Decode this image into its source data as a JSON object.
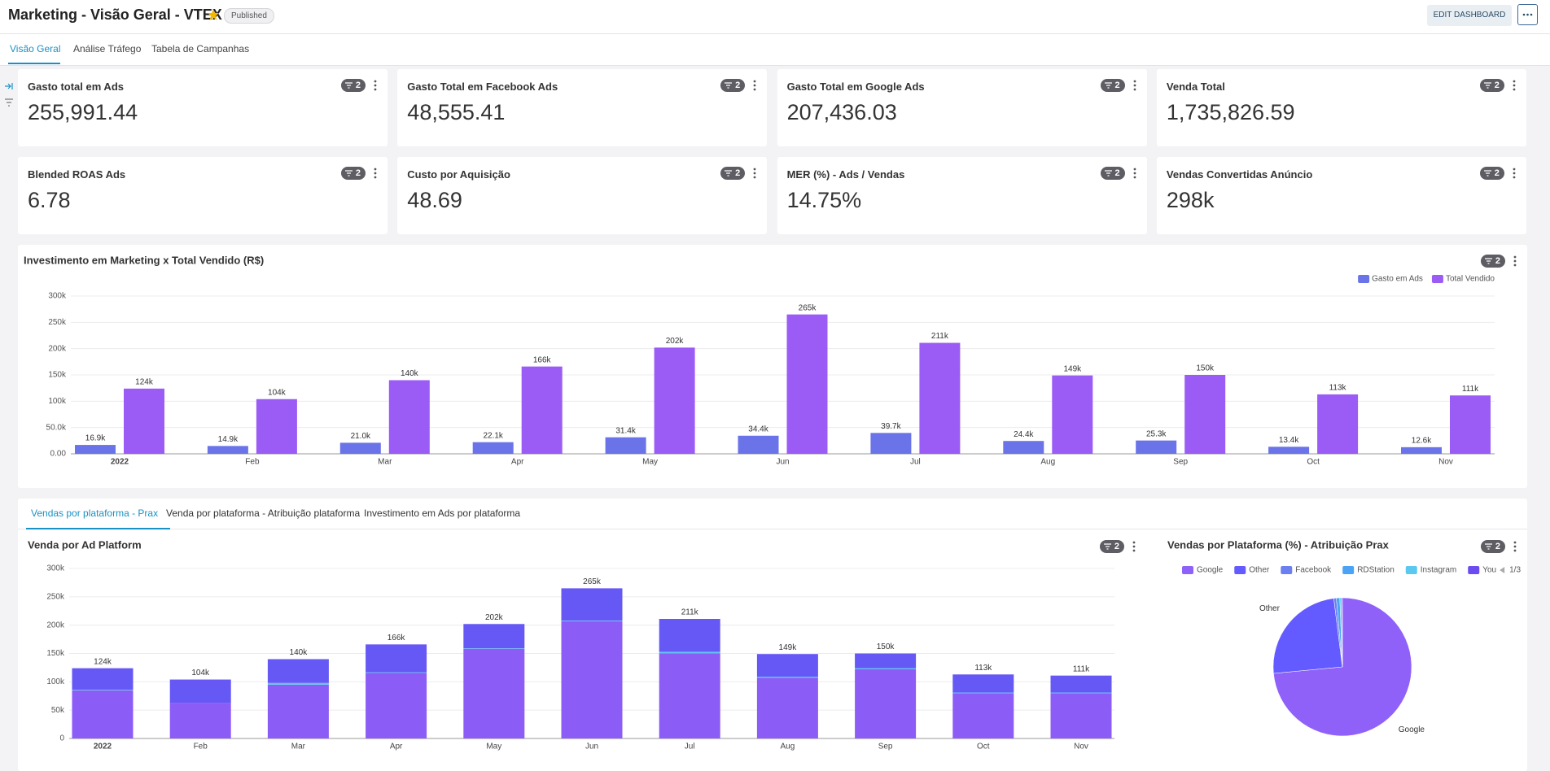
{
  "header": {
    "title": "Marketing - Visão Geral - VTEX",
    "status": "Published",
    "edit_button": "EDIT DASHBOARD"
  },
  "tabs": [
    "Visão Geral",
    "Análise Tráfego",
    "Tabela de Campanhas"
  ],
  "kpis": [
    {
      "title": "Gasto total em Ads",
      "value": "255,991.44",
      "filters": "2"
    },
    {
      "title": "Gasto Total em Facebook Ads",
      "value": "48,555.41",
      "filters": "2"
    },
    {
      "title": "Gasto Total em Google Ads",
      "value": "207,436.03",
      "filters": "2"
    },
    {
      "title": "Venda Total",
      "value": "1,735,826.59",
      "filters": "2"
    },
    {
      "title": "Blended ROAS Ads",
      "value": "6.78",
      "filters": "2"
    },
    {
      "title": "Custo por Aquisição",
      "value": "48.69",
      "filters": "2"
    },
    {
      "title": "MER (%) - Ads / Vendas",
      "value": "14.75%",
      "filters": "2"
    },
    {
      "title": "Vendas Convertidas Anúncio",
      "value": "298k",
      "filters": "2"
    }
  ],
  "subtabs": [
    "Vendas por plataforma - Prax",
    "Venda por plataforma - Atribuição plataforma",
    "Investimento em Ads por plataforma"
  ],
  "chart_data": [
    {
      "type": "bar",
      "title": "Investimento em Marketing x Total Vendido (R$)",
      "filters": "2",
      "legend": "top-right",
      "grid": true,
      "categories": [
        "2022",
        "Feb",
        "Mar",
        "Apr",
        "May",
        "Jun",
        "Jul",
        "Aug",
        "Sep",
        "Oct",
        "Nov"
      ],
      "series": [
        {
          "name": "Gasto em Ads",
          "color": "#6a74e8",
          "values": [
            16900,
            14900,
            21000,
            22100,
            31400,
            34400,
            39700,
            24400,
            25300,
            13400,
            12600
          ],
          "value_labels": [
            "16.9k",
            "14.9k",
            "21.0k",
            "22.1k",
            "31.4k",
            "34.4k",
            "39.7k",
            "24.4k",
            "25.3k",
            "13.4k",
            "12.6k"
          ]
        },
        {
          "name": "Total Vendido",
          "color": "#9b5cf6",
          "values": [
            124000,
            104000,
            140000,
            166000,
            202000,
            265000,
            211000,
            149000,
            150000,
            113000,
            111000
          ],
          "value_labels": [
            "124k",
            "104k",
            "140k",
            "166k",
            "202k",
            "265k",
            "211k",
            "149k",
            "150k",
            "113k",
            "111k"
          ]
        }
      ],
      "ylim": [
        0,
        300000
      ],
      "yticks": [
        {
          "value": 0,
          "label": "0.00"
        },
        {
          "value": 50000,
          "label": "50.0k"
        },
        {
          "value": 100000,
          "label": "100k"
        },
        {
          "value": 150000,
          "label": "150k"
        },
        {
          "value": 200000,
          "label": "200k"
        },
        {
          "value": 250000,
          "label": "250k"
        },
        {
          "value": 300000,
          "label": "300k"
        }
      ]
    },
    {
      "type": "stacked_bar",
      "title": "Venda por Ad Platform",
      "filters": "2",
      "grid": true,
      "categories": [
        "2022",
        "Feb",
        "Mar",
        "Apr",
        "May",
        "Jun",
        "Jul",
        "Aug",
        "Sep",
        "Oct",
        "Nov"
      ],
      "series": [
        {
          "name": "Google",
          "color": "#8b5cf6",
          "values": [
            85000,
            63000,
            95000,
            116000,
            158000,
            207000,
            150000,
            107000,
            122000,
            80000,
            80000
          ]
        },
        {
          "name": "RDStation",
          "color": "#5fc4f0",
          "values": [
            1000,
            0,
            3000,
            1000,
            1000,
            1000,
            3000,
            2000,
            2000,
            1000,
            1000
          ]
        },
        {
          "name": "Other",
          "color": "#6558f5",
          "values": [
            38000,
            41000,
            42000,
            49000,
            43000,
            57000,
            58000,
            40000,
            26000,
            32000,
            30000
          ]
        }
      ],
      "totals": {
        "values": [
          124000,
          104000,
          140000,
          166000,
          202000,
          265000,
          211000,
          149000,
          150000,
          113000,
          111000
        ],
        "value_labels": [
          "124k",
          "104k",
          "140k",
          "166k",
          "202k",
          "265k",
          "211k",
          "149k",
          "150k",
          "113k",
          "111k"
        ]
      },
      "ylim": [
        0,
        300000
      ],
      "yticks": [
        0,
        {
          "value": 50000,
          "label": "50k"
        },
        {
          "value": 100000,
          "label": "100k"
        },
        {
          "value": 150000,
          "label": "150k"
        },
        {
          "value": 200000,
          "label": "200k"
        },
        {
          "value": 250000,
          "label": "250k"
        },
        {
          "value": 300000,
          "label": "300k"
        }
      ]
    },
    {
      "type": "pie",
      "title": "Vendas por Plataforma (%) - Atribuição Prax",
      "filters": "2",
      "legend": "top-left",
      "legend_page": "1/3",
      "categories": [
        "Google",
        "Other",
        "Facebook",
        "RDStation",
        "Instagram",
        "You"
      ],
      "values": [
        73.5,
        24.5,
        0.6,
        0.8,
        0.4,
        0.2
      ],
      "colors": [
        "#9061f9",
        "#635bff",
        "#6b7ff0",
        "#4aa3f5",
        "#5bc8f0",
        "#6c4cf0"
      ]
    }
  ]
}
